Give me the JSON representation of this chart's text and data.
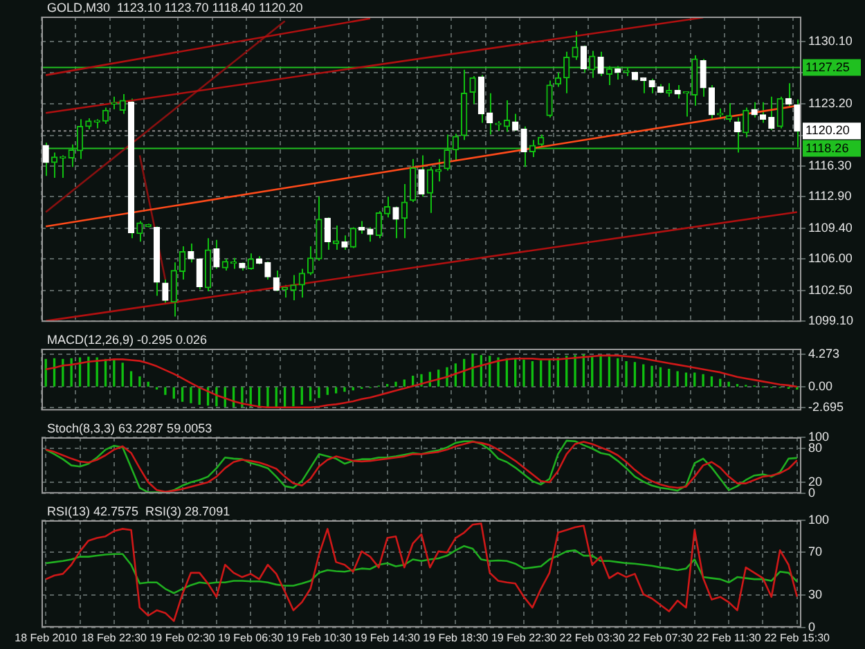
{
  "chart_data": [
    {
      "type": "candlestick",
      "title": "GOLD,M30  1123.10 1123.70 1118.40 1120.20",
      "ohlc": [
        [
          1118.6,
          1118.9,
          1115.2,
          1116.7
        ],
        [
          1116.7,
          1117.8,
          1115.0,
          1117.3
        ],
        [
          1117.2,
          1117.5,
          1115.0,
          1117.3
        ],
        [
          1117.2,
          1118.7,
          1116.2,
          1118.1
        ],
        [
          1118.0,
          1121.5,
          1117.1,
          1120.7
        ],
        [
          1120.7,
          1121.6,
          1120.4,
          1121.3
        ],
        [
          1121.2,
          1121.5,
          1120.5,
          1121.3
        ],
        [
          1121.3,
          1122.8,
          1121.0,
          1122.5
        ],
        [
          1123.2,
          1124.0,
          1122.6,
          1123.3
        ],
        [
          1122.5,
          1124.3,
          1122.1,
          1123.6
        ],
        [
          1123.4,
          1123.8,
          1108.3,
          1108.9
        ],
        [
          1108.8,
          1110.2,
          1107.9,
          1110.0
        ],
        [
          1109.6,
          1109.9,
          1109.5,
          1109.8
        ],
        [
          1109.5,
          1109.6,
          1101.9,
          1103.4
        ],
        [
          1103.3,
          1103.7,
          1101.0,
          1101.4
        ],
        [
          1101.2,
          1105.6,
          1099.6,
          1104.7
        ],
        [
          1104.6,
          1107.4,
          1103.7,
          1106.8
        ],
        [
          1106.8,
          1107.7,
          1105.6,
          1106.0
        ],
        [
          1106.0,
          1106.0,
          1102.6,
          1102.9
        ],
        [
          1102.8,
          1108.3,
          1102.4,
          1107.0
        ],
        [
          1107.1,
          1108.1,
          1104.9,
          1105.1
        ],
        [
          1105.0,
          1106.0,
          1104.7,
          1105.7
        ],
        [
          1105.5,
          1106.1,
          1104.9,
          1105.6
        ],
        [
          1105.5,
          1105.6,
          1104.7,
          1105.0
        ],
        [
          1104.9,
          1106.6,
          1104.8,
          1106.0
        ],
        [
          1106.0,
          1106.3,
          1105.4,
          1105.5
        ],
        [
          1105.6,
          1105.7,
          1103.7,
          1104.0
        ],
        [
          1103.9,
          1104.7,
          1102.4,
          1102.5
        ],
        [
          1102.6,
          1103.1,
          1101.7,
          1102.8
        ],
        [
          1102.5,
          1104.2,
          1101.4,
          1103.1
        ],
        [
          1103.1,
          1104.9,
          1101.7,
          1104.4
        ],
        [
          1104.4,
          1107.4,
          1104.2,
          1106.1
        ],
        [
          1106.0,
          1112.9,
          1105.8,
          1110.4
        ],
        [
          1110.5,
          1110.6,
          1107.0,
          1107.9
        ],
        [
          1107.7,
          1109.7,
          1107.0,
          1108.0
        ],
        [
          1107.9,
          1108.6,
          1107.0,
          1107.3
        ],
        [
          1107.3,
          1109.5,
          1107.2,
          1109.4
        ],
        [
          1109.5,
          1110.2,
          1108.8,
          1109.2
        ],
        [
          1109.3,
          1109.5,
          1107.9,
          1108.7
        ],
        [
          1108.6,
          1111.3,
          1108.3,
          1111.1
        ],
        [
          1111.0,
          1112.9,
          1110.6,
          1111.8
        ],
        [
          1111.7,
          1111.8,
          1108.3,
          1110.4
        ],
        [
          1110.5,
          1114.3,
          1108.3,
          1112.3
        ],
        [
          1112.5,
          1117.1,
          1112.3,
          1116.1
        ],
        [
          1115.9,
          1117.5,
          1112.9,
          1113.2
        ],
        [
          1113.3,
          1116.2,
          1111.1,
          1115.9
        ],
        [
          1115.7,
          1117.1,
          1114.6,
          1115.9
        ],
        [
          1116.0,
          1119.8,
          1115.8,
          1118.1
        ],
        [
          1118.1,
          1119.9,
          1116.9,
          1119.6
        ],
        [
          1119.7,
          1127.0,
          1119.2,
          1124.4
        ],
        [
          1124.5,
          1126.3,
          1123.2,
          1126.1
        ],
        [
          1126.2,
          1126.4,
          1121.1,
          1122.1
        ],
        [
          1122.2,
          1124.4,
          1119.8,
          1121.1
        ],
        [
          1120.9,
          1121.3,
          1120.2,
          1121.0
        ],
        [
          1120.7,
          1123.6,
          1120.1,
          1121.4
        ],
        [
          1121.2,
          1122.1,
          1120.2,
          1120.3
        ],
        [
          1120.4,
          1120.7,
          1116.2,
          1117.9
        ],
        [
          1117.9,
          1119.2,
          1117.3,
          1118.6
        ],
        [
          1118.7,
          1119.8,
          1118.4,
          1119.5
        ],
        [
          1121.9,
          1125.8,
          1121.7,
          1125.3
        ],
        [
          1125.4,
          1126.7,
          1125.1,
          1126.1
        ],
        [
          1126.1,
          1129.0,
          1124.4,
          1128.4
        ],
        [
          1128.4,
          1131.3,
          1128.1,
          1129.5
        ],
        [
          1129.6,
          1129.7,
          1126.7,
          1127.1
        ],
        [
          1127.0,
          1129.1,
          1126.1,
          1128.5
        ],
        [
          1128.4,
          1129.0,
          1126.3,
          1126.6
        ],
        [
          1126.5,
          1127.4,
          1125.3,
          1127.1
        ],
        [
          1127.1,
          1127.4,
          1125.9,
          1126.7
        ],
        [
          1126.7,
          1127.3,
          1126.3,
          1126.9
        ],
        [
          1126.7,
          1126.8,
          1125.8,
          1125.9
        ],
        [
          1126.1,
          1126.1,
          1124.4,
          1125.8
        ],
        [
          1125.8,
          1126.0,
          1124.4,
          1125.1
        ],
        [
          1125.1,
          1125.4,
          1124.4,
          1124.5
        ],
        [
          1124.4,
          1125.5,
          1124.0,
          1124.7
        ],
        [
          1124.7,
          1125.3,
          1123.8,
          1124.3
        ],
        [
          1124.4,
          1124.5,
          1121.8,
          1124.4
        ],
        [
          1124.2,
          1128.6,
          1123.0,
          1128.2
        ],
        [
          1128.0,
          1128.2,
          1124.0,
          1125.0
        ],
        [
          1125.0,
          1125.3,
          1121.5,
          1122.0
        ],
        [
          1122.0,
          1122.7,
          1121.5,
          1122.1
        ],
        [
          1121.5,
          1123.3,
          1121.2,
          1121.9
        ],
        [
          1121.2,
          1121.7,
          1117.8,
          1120.1
        ],
        [
          1120.0,
          1122.8,
          1119.5,
          1122.5
        ],
        [
          1122.6,
          1123.4,
          1121.7,
          1122.0
        ],
        [
          1122.0,
          1123.4,
          1121.1,
          1121.5
        ],
        [
          1121.7,
          1124.0,
          1120.3,
          1120.5
        ],
        [
          1120.7,
          1124.0,
          1120.5,
          1123.8
        ],
        [
          1123.8,
          1125.5,
          1122.8,
          1123.2
        ],
        [
          1123.1,
          1123.7,
          1118.4,
          1120.2
        ]
      ],
      "series": [
        {
          "type": "line",
          "color": "#ff4a1a",
          "values": [
            1109.6,
            null,
            null,
            null,
            null,
            null,
            null,
            null,
            null,
            null,
            null,
            null,
            null,
            null,
            null,
            null,
            null,
            null,
            null,
            null,
            null,
            null,
            null,
            null,
            null,
            null,
            null,
            null,
            null,
            null,
            null,
            null,
            null,
            null,
            null,
            null,
            null,
            null,
            null,
            null,
            null,
            null,
            null,
            null,
            null,
            null,
            null,
            null,
            null,
            null,
            null,
            null,
            null,
            null,
            null,
            null,
            null,
            null,
            null,
            null,
            null,
            null,
            null,
            null,
            null,
            null,
            null,
            null,
            null,
            null,
            null,
            null,
            null,
            null,
            null,
            null,
            null,
            null,
            null,
            null,
            null,
            null,
            null,
            null,
            null,
            null,
            null,
            null,
            1123.0
          ]
        },
        {
          "type": "line",
          "color": "#b01010",
          "values": [
            1099.1,
            null,
            null,
            null,
            null,
            null,
            null,
            null,
            null,
            null,
            null,
            null,
            null,
            null,
            null,
            null,
            null,
            null,
            null,
            null,
            null,
            null,
            null,
            null,
            null,
            null,
            null,
            null,
            null,
            null,
            null,
            null,
            null,
            null,
            null,
            null,
            null,
            null,
            null,
            null,
            null,
            null,
            null,
            null,
            null,
            null,
            null,
            null,
            null,
            null,
            null,
            null,
            null,
            null,
            null,
            null,
            null,
            null,
            null,
            null,
            null,
            null,
            null,
            null,
            null,
            null,
            null,
            null,
            null,
            null,
            null,
            null,
            null,
            null,
            null,
            null,
            null,
            null,
            null,
            null,
            null,
            null,
            null,
            null,
            null,
            null,
            null,
            null,
            1111.2
          ]
        },
        {
          "type": "line",
          "color": "#b01010",
          "values": [
            1122.2,
            null,
            null,
            null,
            null,
            null,
            null,
            null,
            null,
            null,
            null,
            null,
            null,
            null,
            null,
            null,
            null,
            null,
            null,
            null,
            null,
            null,
            null,
            null,
            null,
            null,
            null,
            null,
            null,
            null,
            null,
            null,
            null,
            null,
            null,
            null,
            null,
            null,
            null,
            null,
            null,
            null,
            null,
            null,
            null,
            null,
            null,
            null,
            null,
            null,
            null,
            null,
            null,
            null,
            null,
            null,
            null,
            null,
            null,
            null,
            null,
            null,
            null,
            null,
            null,
            null,
            null,
            null,
            null,
            null,
            null,
            null,
            null,
            null,
            null,
            null,
            null,
            1132.8,
            null,
            null,
            null,
            null,
            null,
            null,
            null,
            null,
            null,
            null,
            null
          ]
        },
        {
          "type": "line",
          "color": "#b01010",
          "values": [
            1126.4,
            null,
            null,
            null,
            null,
            null,
            null,
            null,
            null,
            null,
            null,
            null,
            null,
            null,
            null,
            null,
            null,
            null,
            null,
            null,
            null,
            null,
            null,
            null,
            null,
            null,
            null,
            null,
            null,
            null,
            null,
            null,
            null,
            null,
            null,
            null,
            null,
            null,
            1132.7,
            null,
            null,
            null,
            null,
            null,
            null,
            null,
            null,
            null,
            null,
            null,
            null,
            null,
            null,
            null,
            null,
            null,
            null,
            null,
            null,
            null,
            null,
            null,
            null,
            null,
            null,
            null,
            null,
            null,
            null,
            null,
            null,
            null,
            null,
            null,
            null,
            null,
            null,
            null,
            null,
            null,
            null,
            null,
            null,
            null,
            null,
            null,
            null,
            null,
            null
          ]
        },
        {
          "type": "line",
          "color": "#8a1010",
          "values": [
            1111.2,
            null,
            null,
            null,
            null,
            null,
            null,
            null,
            null,
            null,
            null,
            null,
            null,
            null,
            null,
            null,
            null,
            null,
            null,
            null,
            null,
            null,
            null,
            null,
            null,
            null,
            null,
            null,
            1132.4,
            null,
            null,
            null,
            null,
            null,
            null,
            null,
            null,
            null,
            null,
            null,
            null,
            null,
            null,
            null,
            null,
            null,
            null,
            null,
            null,
            null,
            null,
            null,
            null,
            null,
            null,
            null,
            null,
            null,
            null,
            null,
            null,
            null,
            null,
            null,
            null,
            null,
            null,
            null,
            null,
            null,
            null,
            null,
            null,
            null,
            null,
            null,
            null,
            null,
            null,
            null,
            null,
            null,
            null,
            null,
            null,
            null,
            null,
            null,
            null
          ]
        },
        {
          "type": "line",
          "color": "#8a1010",
          "values": [
            null,
            null,
            null,
            null,
            null,
            null,
            null,
            null,
            null,
            null,
            null,
            1117.5,
            null,
            null,
            1103.7,
            null,
            null,
            null,
            null,
            null,
            null,
            null,
            null,
            null,
            null,
            null,
            null,
            null,
            null,
            null,
            null,
            null,
            null,
            null,
            null,
            null,
            null,
            null,
            null,
            null,
            null,
            null,
            null,
            null,
            null,
            null,
            null,
            null,
            null,
            null,
            null,
            null,
            null,
            null,
            null,
            null,
            null,
            null,
            null,
            null,
            null,
            null,
            null,
            null,
            null,
            null,
            null,
            null,
            null,
            null,
            null,
            null,
            null,
            null,
            null,
            null,
            null,
            null,
            null,
            null,
            null,
            null,
            null,
            null,
            null,
            null,
            null,
            null,
            null
          ]
        }
      ],
      "ylim": [
        1099.0,
        1132.9
      ],
      "yticks": [
        {
          "value": 1130.1,
          "label": "1130.10"
        },
        {
          "value": 1126.7,
          "label": null
        },
        {
          "value": 1123.2,
          "label": "1123.20"
        },
        {
          "value": 1119.7,
          "label": null
        },
        {
          "value": 1116.3,
          "label": "1116.30"
        },
        {
          "value": 1112.9,
          "label": "1112.90"
        },
        {
          "value": 1109.4,
          "label": "1109.40"
        },
        {
          "value": 1106.0,
          "label": "1106.00"
        },
        {
          "value": 1102.5,
          "label": "1102.50"
        },
        {
          "value": 1099.1,
          "label": "1099.10"
        }
      ],
      "ref_lines": [
        {
          "axis": "y",
          "value": 1127.25,
          "label": "1127.25",
          "color": "#20c020",
          "line_style": "solid"
        },
        {
          "axis": "y",
          "value": 1118.26,
          "label": "1118.26",
          "color": "#20c020",
          "line_style": "solid"
        },
        {
          "axis": "y",
          "value": 1120.2,
          "label": "1120.20",
          "color": "#8a8a8a",
          "line_style": "dotted"
        }
      ],
      "grid": true,
      "marker": "none",
      "tick_labels": "y"
    },
    {
      "type": "bar",
      "title": "MACD(12,26,9) -0.295 0.026",
      "series": [
        {
          "type": "bar",
          "color": "#10c010",
          "values": [
            3.6,
            3.7,
            3.6,
            3.7,
            3.8,
            3.9,
            3.8,
            3.6,
            3.5,
            3.1,
            2.0,
            1.3,
            0.6,
            -0.3,
            -1.0,
            -1.5,
            -1.9,
            -2.1,
            -2.3,
            -2.4,
            -2.5,
            -2.6,
            -2.6,
            -2.6,
            -2.6,
            -2.6,
            -2.6,
            -2.6,
            -2.6,
            -2.5,
            -2.3,
            -1.8,
            -1.4,
            -1.0,
            -0.8,
            -0.6,
            -0.4,
            -0.2,
            -0.1,
            0.1,
            0.3,
            0.6,
            0.9,
            1.4,
            1.6,
            1.9,
            2.2,
            2.5,
            3.0,
            3.6,
            4.3,
            4.1,
            4.0,
            3.8,
            3.7,
            3.6,
            3.5,
            3.3,
            3.4,
            3.5,
            3.8,
            4.0,
            4.1,
            4.2,
            4.0,
            4.0,
            3.9,
            3.7,
            3.3,
            3.2,
            2.9,
            2.7,
            2.5,
            2.3,
            2.0,
            1.8,
            1.8,
            1.6,
            1.3,
            1.0,
            0.6,
            0.3,
            0.2,
            0.1,
            0.0,
            -0.1,
            -0.1,
            -0.2,
            -0.3
          ]
        },
        {
          "type": "line",
          "color": "#d01818",
          "values": [
            2.3,
            2.5,
            2.8,
            2.9,
            3.1,
            3.3,
            3.4,
            3.5,
            3.6,
            3.6,
            3.5,
            3.4,
            3.1,
            2.7,
            2.2,
            1.7,
            1.1,
            0.5,
            -0.1,
            -0.6,
            -1.1,
            -1.5,
            -1.9,
            -2.2,
            -2.4,
            -2.6,
            -2.7,
            -2.7,
            -2.7,
            -2.7,
            -2.7,
            -2.7,
            -2.6,
            -2.4,
            -2.3,
            -2.1,
            -1.9,
            -1.6,
            -1.4,
            -1.1,
            -0.8,
            -0.5,
            -0.2,
            0.1,
            0.4,
            0.7,
            1.0,
            1.3,
            1.7,
            2.1,
            2.5,
            2.8,
            3.1,
            3.4,
            3.6,
            3.7,
            3.7,
            3.7,
            3.6,
            3.6,
            3.6,
            3.7,
            3.8,
            3.9,
            4.0,
            4.1,
            4.1,
            4.1,
            4.0,
            3.9,
            3.7,
            3.5,
            3.3,
            3.1,
            2.9,
            2.7,
            2.5,
            2.3,
            2.1,
            1.9,
            1.6,
            1.3,
            1.1,
            0.9,
            0.7,
            0.5,
            0.3,
            0.2,
            0.0
          ]
        }
      ],
      "ylim": [
        -3.1,
        5.0
      ],
      "yticks": [
        {
          "value": 4.273,
          "label": "4.273"
        },
        {
          "value": 0,
          "label": "0.00"
        },
        {
          "value": -2.695,
          "label": "-2.695"
        }
      ],
      "grid": true,
      "marker": "none",
      "tick_labels": "y"
    },
    {
      "type": "line",
      "title": "Stoch(8,3,3) 63.2287 59.0053",
      "series": [
        {
          "color": "#20b020",
          "values": [
            78,
            70,
            61,
            50,
            48,
            53,
            64,
            78,
            85,
            82,
            46,
            10,
            2,
            2,
            2,
            6,
            14,
            20,
            24,
            30,
            45,
            64,
            62,
            61,
            54,
            50,
            45,
            30,
            13,
            10,
            22,
            46,
            70,
            66,
            62,
            53,
            58,
            61,
            61,
            64,
            64,
            66,
            69,
            72,
            70,
            74,
            77,
            82,
            90,
            93,
            93,
            88,
            78,
            62,
            56,
            46,
            34,
            22,
            16,
            26,
            70,
            94,
            93,
            86,
            80,
            72,
            69,
            58,
            45,
            30,
            21,
            14,
            10,
            8,
            5,
            14,
            54,
            62,
            46,
            26,
            6,
            13,
            24,
            32,
            34,
            30,
            38,
            62,
            63.2
          ]
        },
        {
          "color": "#d01818",
          "values": [
            78,
            74,
            68,
            62,
            57,
            55,
            60,
            68,
            78,
            84,
            72,
            45,
            20,
            6,
            3,
            5,
            8,
            12,
            16,
            20,
            30,
            45,
            56,
            60,
            58,
            55,
            50,
            44,
            30,
            18,
            14,
            26,
            48,
            60,
            66,
            62,
            58,
            57,
            58,
            60,
            62,
            64,
            66,
            70,
            70,
            72,
            74,
            78,
            84,
            88,
            92,
            90,
            86,
            78,
            68,
            58,
            46,
            34,
            22,
            20,
            40,
            70,
            88,
            92,
            88,
            82,
            76,
            68,
            56,
            42,
            30,
            22,
            16,
            12,
            10,
            12,
            30,
            50,
            56,
            46,
            30,
            18,
            18,
            24,
            30,
            32,
            36,
            44,
            59.0
          ]
        }
      ],
      "ylim": [
        0,
        100
      ],
      "yticks": [
        0,
        20,
        80,
        100
      ],
      "grid": true,
      "marker": "none",
      "tick_labels": "y"
    },
    {
      "type": "line",
      "title": "RSI(13) 42.7575  RSI(3) 28.7091",
      "categories": [
        "18 Feb 2010",
        null,
        null,
        null,
        null,
        null,
        null,
        null,
        "18 Feb 22:30",
        null,
        null,
        null,
        null,
        null,
        null,
        null,
        "19 Feb 02:30",
        null,
        null,
        null,
        null,
        null,
        null,
        null,
        "19 Feb 06:30",
        null,
        null,
        null,
        null,
        null,
        null,
        null,
        "19 Feb 10:30",
        null,
        null,
        null,
        null,
        null,
        null,
        null,
        "19 Feb 14:30",
        null,
        null,
        null,
        null,
        null,
        null,
        null,
        "19 Feb 18:30",
        null,
        null,
        null,
        null,
        null,
        null,
        null,
        "19 Feb 22:30",
        null,
        null,
        null,
        null,
        null,
        null,
        null,
        "22 Feb 03:30",
        null,
        null,
        null,
        null,
        null,
        null,
        null,
        "22 Feb 07:30",
        null,
        null,
        null,
        null,
        null,
        null,
        null,
        "22 Feb 11:30",
        null,
        null,
        null,
        null,
        null,
        null,
        null,
        "22 Feb 15:30"
      ],
      "series": [
        {
          "color": "#20b020",
          "values": [
            60,
            61,
            62,
            63.5,
            66,
            66,
            67,
            68,
            68.5,
            68.5,
            58.5,
            41,
            42,
            42,
            36,
            32,
            36,
            39.5,
            42,
            41,
            42,
            42,
            43.5,
            43.5,
            43,
            43,
            42,
            40,
            39,
            39,
            41,
            43.5,
            51,
            53.5,
            52.5,
            52,
            53.5,
            55,
            54.5,
            58.5,
            60,
            57,
            58.5,
            63.5,
            62,
            63.5,
            64.5,
            67,
            72,
            76,
            73.5,
            63.5,
            62,
            62.5,
            62,
            59.5,
            55,
            56,
            57,
            63.5,
            67,
            71,
            72,
            67,
            67,
            62,
            62,
            61,
            60,
            59.5,
            58.5,
            57.5,
            56,
            55,
            53.5,
            55,
            63.5,
            47,
            46,
            45,
            42,
            47,
            46,
            45,
            45,
            43.5,
            52,
            51,
            42.8
          ]
        },
        {
          "color": "#d01818",
          "values": [
            45,
            48.5,
            50,
            58.5,
            71,
            81,
            83.5,
            85,
            90,
            92,
            91,
            18.5,
            11,
            16,
            13.5,
            6,
            31,
            51,
            51,
            41,
            28.5,
            58.5,
            51,
            47,
            50,
            45,
            58.5,
            50,
            33.5,
            16,
            23.5,
            36,
            68,
            92,
            61,
            58.5,
            52,
            71,
            66,
            56,
            83.5,
            85,
            56,
            78.5,
            87,
            56,
            71,
            70,
            83.5,
            88.5,
            96,
            97,
            51,
            43.5,
            42,
            41,
            28.5,
            18.5,
            36,
            51,
            88.5,
            91,
            93.5,
            95,
            58.5,
            66,
            46,
            51,
            47,
            50,
            31,
            27,
            21,
            15,
            25,
            18.5,
            91,
            46,
            26,
            28.5,
            23.5,
            16,
            56,
            51,
            46,
            28.5,
            72,
            58.5,
            28.7
          ]
        }
      ],
      "ylim": [
        0,
        100
      ],
      "yticks": [
        0,
        30,
        70,
        100
      ],
      "grid": true,
      "marker": "none"
    }
  ]
}
